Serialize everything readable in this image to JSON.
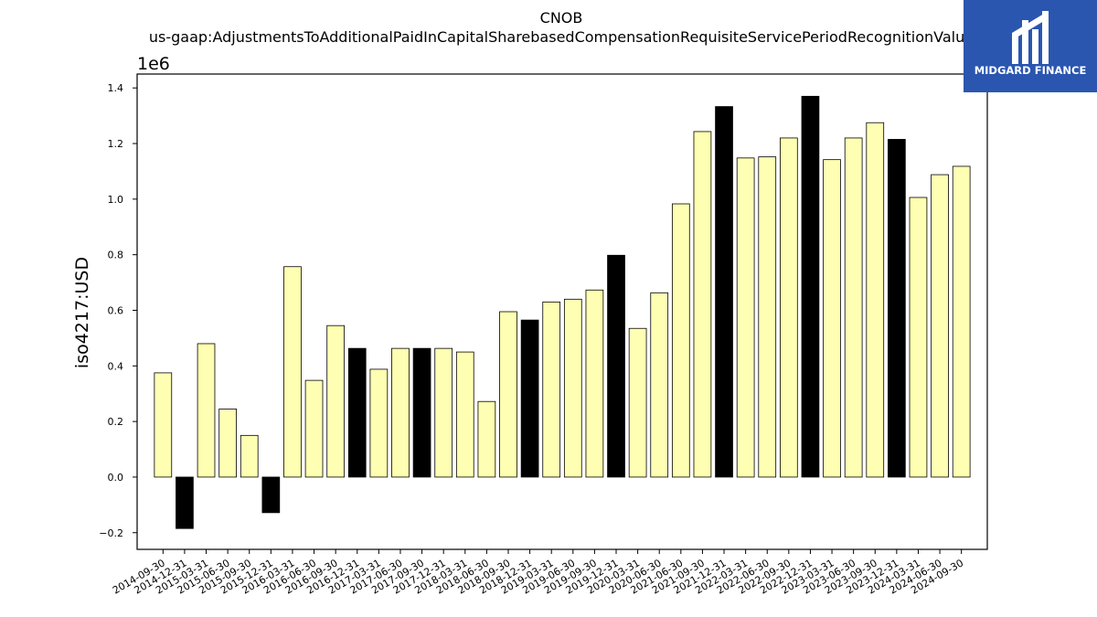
{
  "chart_data": {
    "type": "bar",
    "title": "CNOB",
    "subtitle": "us-gaap:AdjustmentsToAdditionalPaidInCapitalSharebasedCompensationRequisiteServicePeriodRecognitionValue",
    "xlabel": "",
    "ylabel": "iso4217:USD",
    "y_offset_label": "1e6",
    "ylim": [
      -0.26,
      1.45
    ],
    "yticks": [
      -0.2,
      0.0,
      0.2,
      0.4,
      0.6,
      0.8,
      1.0,
      1.2,
      1.4
    ],
    "ytick_labels": [
      "−0.2",
      "0.0",
      "0.2",
      "0.4",
      "0.6",
      "0.8",
      "1.0",
      "1.2",
      "1.4"
    ],
    "grid": false,
    "categories": [
      "2014-09-30",
      "2014-12-31",
      "2015-03-31",
      "2015-06-30",
      "2015-09-30",
      "2015-12-31",
      "2016-03-31",
      "2016-06-30",
      "2016-09-30",
      "2016-12-31",
      "2017-03-31",
      "2017-06-30",
      "2017-09-30",
      "2017-12-31",
      "2018-03-31",
      "2018-06-30",
      "2018-09-30",
      "2018-12-31",
      "2019-03-31",
      "2019-06-30",
      "2019-09-30",
      "2019-12-31",
      "2020-03-31",
      "2020-06-30",
      "2021-06-30",
      "2021-09-30",
      "2021-12-31",
      "2022-03-31",
      "2022-06-30",
      "2022-09-30",
      "2022-12-31",
      "2023-03-31",
      "2023-06-30",
      "2023-09-30",
      "2023-12-31",
      "2024-03-31",
      "2024-06-30",
      "2024-09-30"
    ],
    "values": [
      0.375,
      -0.185,
      0.48,
      0.245,
      0.15,
      -0.128,
      0.757,
      0.348,
      0.545,
      0.463,
      0.388,
      0.463,
      0.463,
      0.463,
      0.45,
      0.272,
      0.595,
      0.565,
      0.63,
      0.64,
      0.673,
      0.798,
      0.535,
      0.663,
      0.983,
      1.243,
      1.333,
      1.148,
      1.152,
      1.22,
      1.37,
      1.142,
      1.22,
      1.275,
      1.215,
      1.006,
      1.088,
      1.118
    ],
    "bar_colors": [
      "#ffffb3",
      "#000000",
      "#ffffb3",
      "#ffffb3",
      "#ffffb3",
      "#000000",
      "#ffffb3",
      "#ffffb3",
      "#ffffb3",
      "#000000",
      "#ffffb3",
      "#ffffb3",
      "#000000",
      "#ffffb3",
      "#ffffb3",
      "#ffffb3",
      "#ffffb3",
      "#000000",
      "#ffffb3",
      "#ffffb3",
      "#ffffb3",
      "#000000",
      "#ffffb3",
      "#ffffb3",
      "#ffffb3",
      "#ffffb3",
      "#000000",
      "#ffffb3",
      "#ffffb3",
      "#ffffb3",
      "#000000",
      "#ffffb3",
      "#ffffb3",
      "#ffffb3",
      "#000000",
      "#ffffb3",
      "#ffffb3",
      "#ffffb3"
    ],
    "xtick_labels": [
      "2014-09-30",
      "2014-12-31",
      "2015-03-31",
      "2015-06-30",
      "2015-09-30",
      "2015-12-31",
      "2016-03-31",
      "2016-06-30",
      "2016-09-30",
      "2016-12-31",
      "2017-03-31",
      "2017-06-30",
      "2017-09-30",
      "2017-12-31",
      "2018-03-31",
      "2018-06-30",
      "2018-09-30",
      "2018-12-31",
      "2019-03-31",
      "2019-06-30",
      "2019-09-30",
      "2019-12-31",
      "2020-03-31",
      "2020-06-30",
      "2021-06-30",
      "2021-09-30",
      "2021-12-31",
      "2022-03-31",
      "2022-06-30",
      "2022-09-30",
      "2022-12-31",
      "2023-03-31",
      "2023-06-30",
      "2023-09-30",
      "2023-12-31",
      "2024-03-31",
      "2024-06-30",
      "2024-09-30"
    ]
  },
  "logo": {
    "text": "MIDGARD FINANCE",
    "background": "#2a56b0",
    "foreground": "#ffffff"
  }
}
